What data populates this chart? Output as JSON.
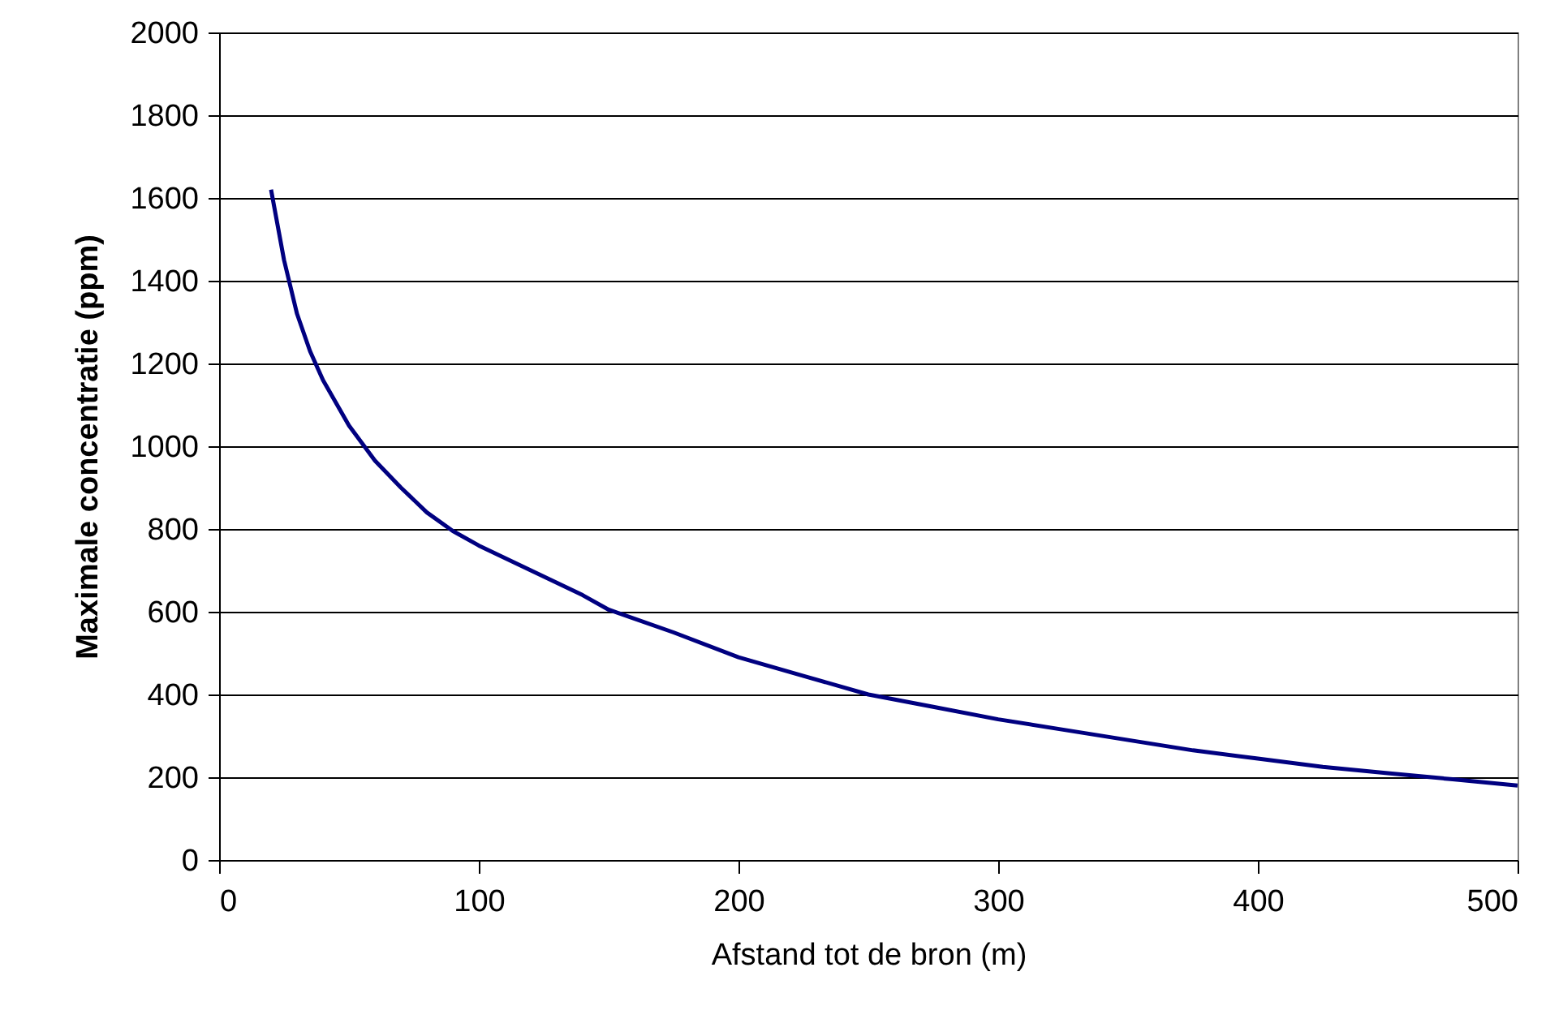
{
  "chart_data": {
    "type": "line",
    "xlabel": "Afstand tot de bron (m)",
    "ylabel": "Maximale concentratie (ppm)",
    "x": [
      20,
      25,
      30,
      35,
      40,
      50,
      60,
      70,
      80,
      90,
      100,
      120,
      140,
      150,
      175,
      200,
      225,
      250,
      275,
      300,
      325,
      350,
      375,
      400,
      425,
      450,
      475,
      500
    ],
    "series": [
      {
        "color": "#000080",
        "values": [
          1620,
          1450,
          1320,
          1230,
          1160,
          1050,
          965,
          900,
          840,
          795,
          760,
          700,
          640,
          605,
          550,
          490,
          445,
          400,
          370,
          340,
          315,
          290,
          265,
          245,
          225,
          210,
          195,
          180
        ]
      }
    ],
    "xlim": [
      0,
      500
    ],
    "xticks": [
      0,
      100,
      200,
      300,
      400,
      500
    ],
    "ylim": [
      0,
      2000
    ],
    "yticks": [
      0,
      200,
      400,
      600,
      800,
      1000,
      1200,
      1400,
      1600,
      1800,
      2000
    ],
    "grid": "y",
    "legend": false,
    "marker": "none",
    "line_style": "solid"
  }
}
